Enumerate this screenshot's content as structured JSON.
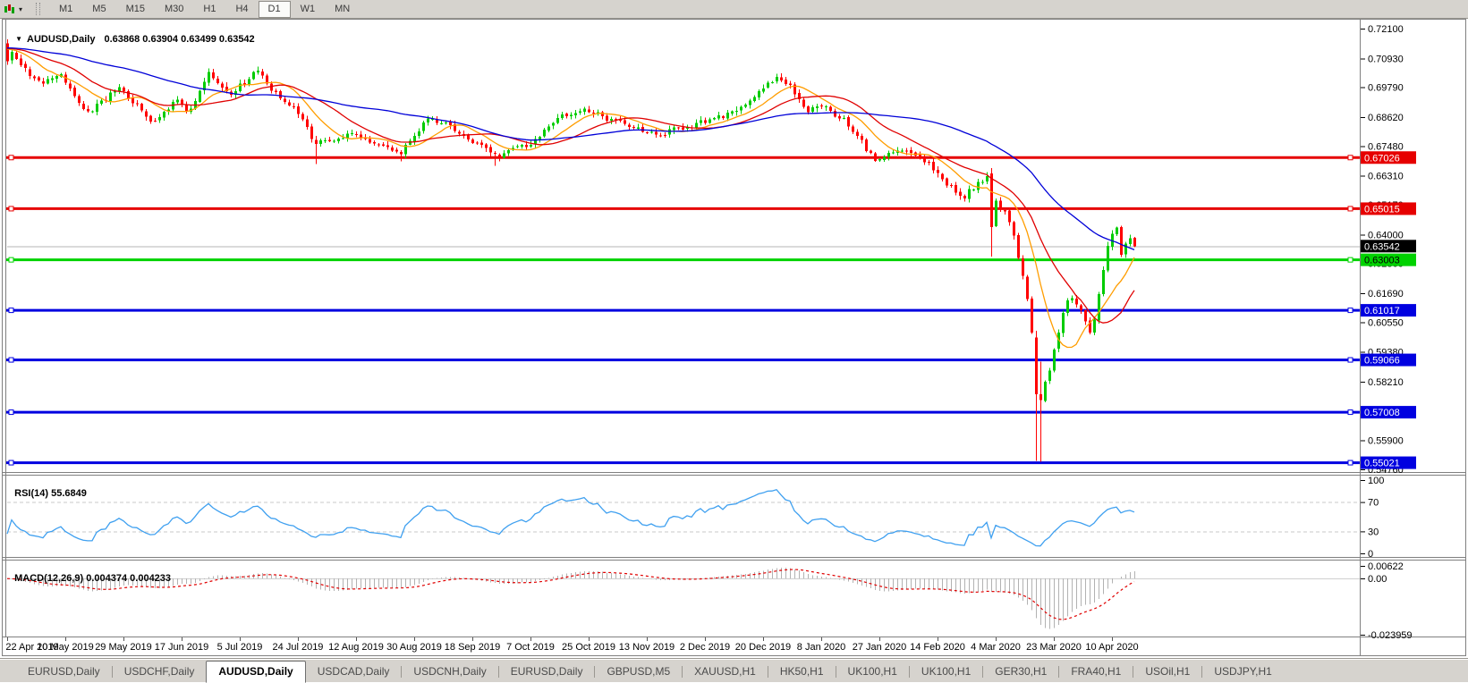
{
  "toolbar": {
    "timeframes": [
      "M1",
      "M5",
      "M15",
      "M30",
      "H1",
      "H4",
      "D1",
      "W1",
      "MN"
    ],
    "active_timeframe": "D1"
  },
  "chart": {
    "title": "AUDUSD,Daily",
    "ohlc_string": "0.63868 0.63904 0.63499 0.63542",
    "price_axis_ticks": [
      "0.72100",
      "0.70930",
      "0.69790",
      "0.68620",
      "0.67480",
      "0.66310",
      "0.65170",
      "0.64000",
      "0.62860",
      "0.61690",
      "0.60550",
      "0.59380",
      "0.58210",
      "0.57070",
      "0.55900",
      "0.54760"
    ],
    "current_price_label": "0.63542",
    "date_axis": [
      "22 Apr 2019",
      "10 May 2019",
      "29 May 2019",
      "17 Jun 2019",
      "5 Jul 2019",
      "24 Jul 2019",
      "12 Aug 2019",
      "30 Aug 2019",
      "18 Sep 2019",
      "7 Oct 2019",
      "25 Oct 2019",
      "13 Nov 2019",
      "2 Dec 2019",
      "20 Dec 2019",
      "8 Jan 2020",
      "27 Jan 2020",
      "14 Feb 2020",
      "4 Mar 2020",
      "23 Mar 2020",
      "10 Apr 2020"
    ]
  },
  "rsi_panel": {
    "label": "RSI(14)",
    "value": "55.6849",
    "axis_labels": [
      "100",
      "70",
      "30",
      "0"
    ]
  },
  "macd_panel": {
    "label": "MACD(12,26,9)",
    "values": "0.004374 0.004233",
    "axis_labels": [
      "0.00622",
      "0.00",
      "-0.023959"
    ]
  },
  "tabs": {
    "items": [
      "EURUSD,Daily",
      "USDCHF,Daily",
      "AUDUSD,Daily",
      "USDCAD,Daily",
      "USDCNH,Daily",
      "EURUSD,Daily",
      "GBPUSD,M5",
      "XAUUSD,H1",
      "HK50,H1",
      "UK100,H1",
      "UK100,H1",
      "GER30,H1",
      "FRA40,H1",
      "USOil,H1",
      "USDJPY,H1"
    ],
    "active_index": 2
  },
  "colors": {
    "bull": "#00cc00",
    "bear": "#ff0000",
    "ma_fast": "#ff9d00",
    "ma_mid": "#e00000",
    "ma_slow": "#0000d8",
    "level_red": "#e60000",
    "level_green": "#00d200",
    "level_blue": "#0000e0",
    "current_line": "#b4b4b4",
    "current_box": "#000000",
    "rsi_line": "#3fa0f0",
    "macd_hist": "#b2b2b2",
    "macd_signal": "#e00000",
    "panel_bg": "#d6d3ce",
    "border": "#808080"
  },
  "chart_data": {
    "type": "candlestick",
    "symbol": "AUDUSD",
    "timeframe": "Daily",
    "bars": 253,
    "last_ohlc": {
      "open": 0.63868,
      "high": 0.63904,
      "low": 0.63499,
      "close": 0.63542
    },
    "price_ticks": [
      0.721,
      0.7093,
      0.6979,
      0.6862,
      0.6748,
      0.6631,
      0.6517,
      0.64,
      0.6286,
      0.6169,
      0.6055,
      0.5938,
      0.5821,
      0.5707,
      0.559,
      0.5476
    ],
    "price_range_shown": [
      0.5476,
      0.721
    ],
    "current_price": 0.63542,
    "close_anchors": [
      [
        0.0,
        0.7135
      ],
      [
        0.012,
        0.7065
      ],
      [
        0.028,
        0.6995
      ],
      [
        0.047,
        0.703
      ],
      [
        0.071,
        0.687
      ],
      [
        0.079,
        0.691
      ],
      [
        0.099,
        0.6975
      ],
      [
        0.13,
        0.6838
      ],
      [
        0.15,
        0.6925
      ],
      [
        0.162,
        0.688
      ],
      [
        0.178,
        0.703
      ],
      [
        0.198,
        0.696
      ],
      [
        0.222,
        0.704
      ],
      [
        0.233,
        0.698
      ],
      [
        0.255,
        0.69
      ],
      [
        0.273,
        0.6755
      ],
      [
        0.3,
        0.6795
      ],
      [
        0.324,
        0.676
      ],
      [
        0.348,
        0.672
      ],
      [
        0.375,
        0.686
      ],
      [
        0.391,
        0.6828
      ],
      [
        0.42,
        0.675
      ],
      [
        0.431,
        0.6705
      ],
      [
        0.466,
        0.6758
      ],
      [
        0.49,
        0.6858
      ],
      [
        0.514,
        0.689
      ],
      [
        0.53,
        0.6858
      ],
      [
        0.549,
        0.684
      ],
      [
        0.575,
        0.679
      ],
      [
        0.601,
        0.6822
      ],
      [
        0.636,
        0.6868
      ],
      [
        0.66,
        0.6928
      ],
      [
        0.684,
        0.7022
      ],
      [
        0.7,
        0.6952
      ],
      [
        0.71,
        0.6892
      ],
      [
        0.725,
        0.6905
      ],
      [
        0.743,
        0.6845
      ],
      [
        0.771,
        0.669
      ],
      [
        0.79,
        0.6732
      ],
      [
        0.81,
        0.6712
      ],
      [
        0.83,
        0.662
      ],
      [
        0.846,
        0.654
      ],
      [
        0.858,
        0.6585
      ],
      [
        0.866,
        0.6625
      ],
      [
        0.874,
        0.6585
      ],
      [
        0.88,
        0.651
      ],
      [
        0.889,
        0.646
      ],
      [
        0.897,
        0.631
      ],
      [
        0.905,
        0.612
      ],
      [
        0.909,
        0.5995
      ],
      [
        0.913,
        0.577
      ],
      [
        0.917,
        0.5745
      ],
      [
        0.921,
        0.581
      ],
      [
        0.929,
        0.5965
      ],
      [
        0.937,
        0.609
      ],
      [
        0.941,
        0.616
      ],
      [
        0.949,
        0.6125
      ],
      [
        0.957,
        0.6055
      ],
      [
        0.961,
        0.5998
      ],
      [
        0.969,
        0.617
      ],
      [
        0.976,
        0.6345
      ],
      [
        0.984,
        0.6438
      ],
      [
        0.988,
        0.633
      ],
      [
        0.992,
        0.6365
      ],
      [
        0.996,
        0.6378
      ],
      [
        1.0,
        0.63542
      ]
    ],
    "bar_overrides": [
      {
        "i": 0,
        "o": 0.7152,
        "h": 0.7168,
        "l": 0.7068,
        "c": 0.7082
      },
      {
        "i": 69,
        "l": 0.6677
      },
      {
        "i": 88,
        "l": 0.6688
      },
      {
        "i": 109,
        "l": 0.667
      },
      {
        "i": 172,
        "h": 0.7032
      },
      {
        "i": 220,
        "o": 0.664,
        "h": 0.6662,
        "l": 0.6313,
        "c": 0.643
      },
      {
        "i": 230,
        "o": 0.5995,
        "h": 0.6022,
        "l": 0.551,
        "c": 0.5772
      },
      {
        "i": 231,
        "o": 0.5772,
        "h": 0.59,
        "l": 0.5506,
        "c": 0.5748
      },
      {
        "i": 252,
        "o": 0.63868,
        "h": 0.63904,
        "l": 0.63499,
        "c": 0.63542
      }
    ],
    "horizontal_levels": [
      {
        "price": 0.67026,
        "label": "0.67026",
        "color": "#e60000",
        "text_color": "#ffffff"
      },
      {
        "price": 0.65015,
        "label": "0.65015",
        "color": "#e60000",
        "text_color": "#ffffff"
      },
      {
        "price": 0.63003,
        "label": "0.63003",
        "color": "#00d200",
        "text_color": "#000000"
      },
      {
        "price": 0.61017,
        "label": "0.61017",
        "color": "#0000e0",
        "text_color": "#ffffff"
      },
      {
        "price": 0.59066,
        "label": "0.59066",
        "color": "#0000e0",
        "text_color": "#ffffff"
      },
      {
        "price": 0.57008,
        "label": "0.57008",
        "color": "#0000e0",
        "text_color": "#ffffff"
      },
      {
        "price": 0.55021,
        "label": "0.55021",
        "color": "#0000e0",
        "text_color": "#ffffff"
      }
    ],
    "moving_averages": [
      {
        "period": 10,
        "color": "#ff9d00"
      },
      {
        "period": 20,
        "color": "#e00000"
      },
      {
        "period": 50,
        "color": "#0000d8"
      }
    ],
    "indicators": [
      {
        "name": "RSI",
        "period": 14,
        "last_value": 55.6849,
        "range": [
          0,
          100
        ],
        "dashed_levels": [
          70,
          30
        ],
        "axis_values": [
          100,
          70,
          30,
          0
        ],
        "color": "#3fa0f0"
      },
      {
        "name": "MACD",
        "fast": 12,
        "slow": 26,
        "signal": 9,
        "main_last": 0.004374,
        "signal_last": 0.004233,
        "axis_values": [
          0.00622,
          0,
          -0.023959
        ]
      }
    ]
  }
}
